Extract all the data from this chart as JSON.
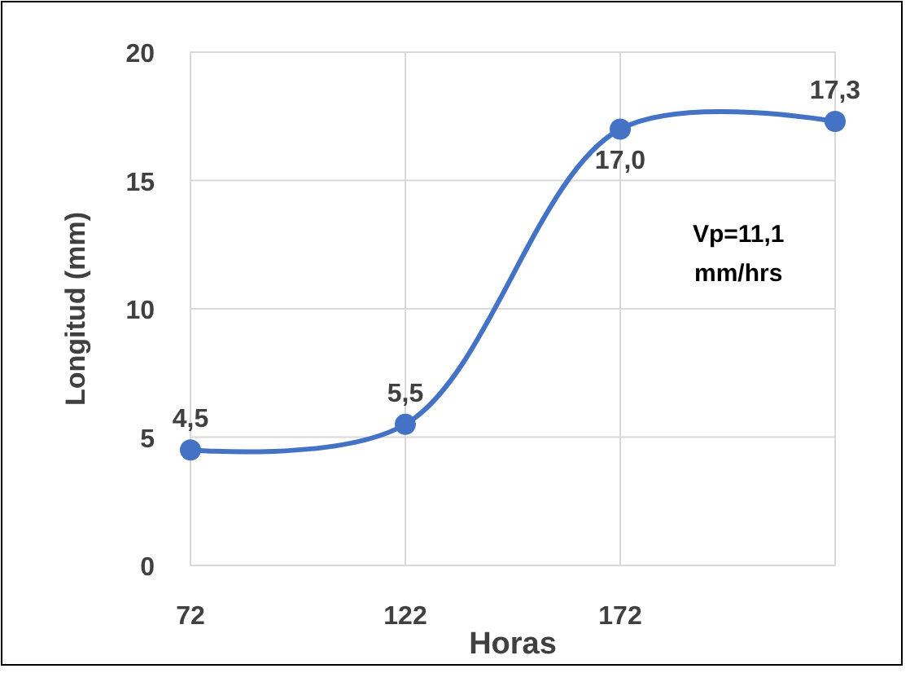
{
  "chart_data": {
    "type": "line",
    "xlabel": "Horas",
    "ylabel": "Longitud (mm)",
    "x": [
      72,
      122,
      172,
      222
    ],
    "series": [
      {
        "color": "#4472c4",
        "values": [
          4.5,
          5.5,
          17.0,
          17.3
        ],
        "value_labels": [
          "4,5",
          "5,5",
          "17,0",
          "17,3"
        ]
      }
    ],
    "xlim": [
      72,
      222
    ],
    "xticks": [
      72,
      122,
      172,
      {
        "value": 222,
        "label": null
      }
    ],
    "ylim": [
      0,
      20
    ],
    "yticks": [
      0,
      5,
      10,
      15,
      20
    ],
    "grid": true,
    "marker": "circle",
    "line_style": "solid",
    "annotations": [
      "Vp=11,1 mm/hrs"
    ]
  }
}
